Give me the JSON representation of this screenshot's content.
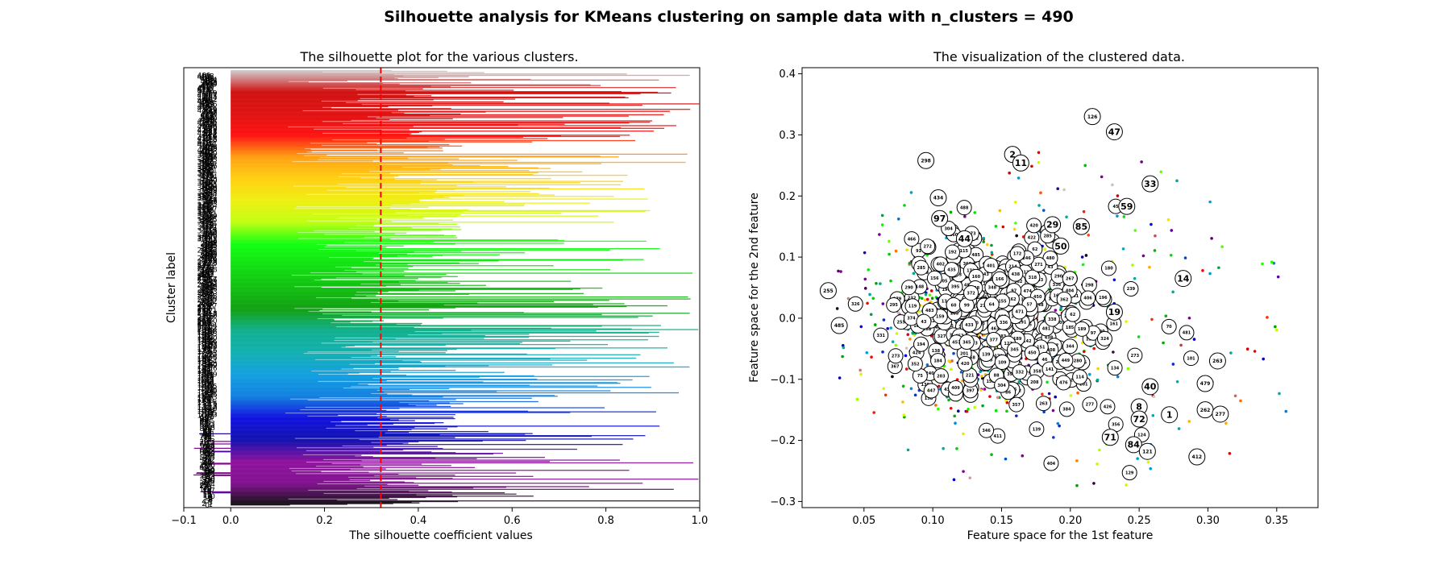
{
  "figure": {
    "suptitle": "Silhouette analysis for KMeans clustering on sample data with n_clusters = 490"
  },
  "chart_data": [
    {
      "type": "bar",
      "orientation": "horizontal",
      "title": "The silhouette plot for the various clusters.",
      "xlabel": "The silhouette coefficient values",
      "ylabel": "Cluster label",
      "xlim": [
        -0.1,
        1.0
      ],
      "xticks": [
        "−0.1",
        "0.0",
        "0.2",
        "0.4",
        "0.6",
        "0.8",
        "1.0"
      ],
      "xtick_values": [
        -0.1,
        0.0,
        0.2,
        0.4,
        0.6,
        0.8,
        1.0
      ],
      "n_clusters": 490,
      "average_silhouette_score": 0.32,
      "average_line_color": "#ff0000",
      "colormap": "nipy_spectral",
      "grid": false
    },
    {
      "type": "scatter",
      "title": "The visualization of the clustered data.",
      "xlabel": "Feature space for the 1st feature",
      "ylabel": "Feature space for the 2nd feature",
      "xlim": [
        0.005,
        0.38
      ],
      "ylim": [
        -0.31,
        0.41
      ],
      "xticks": [
        "0.05",
        "0.10",
        "0.15",
        "0.20",
        "0.25",
        "0.30",
        "0.35"
      ],
      "xtick_values": [
        0.05,
        0.1,
        0.15,
        0.2,
        0.25,
        0.3,
        0.35
      ],
      "yticks": [
        "−0.3",
        "−0.2",
        "−0.1",
        "0.0",
        "0.1",
        "0.2",
        "0.3",
        "0.4"
      ],
      "ytick_values": [
        -0.3,
        -0.2,
        -0.1,
        0.0,
        0.1,
        0.2,
        0.3,
        0.4
      ],
      "colormap": "nipy_spectral",
      "grid": false,
      "centers": [
        {
          "label": "1",
          "x": 0.272,
          "y": -0.158
        },
        {
          "label": "2",
          "x": 0.158,
          "y": 0.268
        },
        {
          "label": "8",
          "x": 0.25,
          "y": -0.145
        },
        {
          "label": "11",
          "x": 0.164,
          "y": 0.254
        },
        {
          "label": "14",
          "x": 0.282,
          "y": 0.065
        },
        {
          "label": "19",
          "x": 0.232,
          "y": 0.01
        },
        {
          "label": "29",
          "x": 0.187,
          "y": 0.153
        },
        {
          "label": "33",
          "x": 0.258,
          "y": 0.22
        },
        {
          "label": "40",
          "x": 0.258,
          "y": -0.112
        },
        {
          "label": "44",
          "x": 0.123,
          "y": 0.13
        },
        {
          "label": "47",
          "x": 0.232,
          "y": 0.305
        },
        {
          "label": "50",
          "x": 0.193,
          "y": 0.118
        },
        {
          "label": "59",
          "x": 0.241,
          "y": 0.183
        },
        {
          "label": "71",
          "x": 0.229,
          "y": -0.195
        },
        {
          "label": "72",
          "x": 0.25,
          "y": -0.165
        },
        {
          "label": "84",
          "x": 0.246,
          "y": -0.207
        },
        {
          "label": "85",
          "x": 0.208,
          "y": 0.15
        },
        {
          "label": "97",
          "x": 0.105,
          "y": 0.163
        },
        {
          "label": "121",
          "x": 0.256,
          "y": -0.218
        },
        {
          "label": "126",
          "x": 0.216,
          "y": 0.33
        },
        {
          "label": "255",
          "x": 0.024,
          "y": 0.045
        },
        {
          "label": "262",
          "x": 0.298,
          "y": -0.15
        },
        {
          "label": "263",
          "x": 0.307,
          "y": -0.07
        },
        {
          "label": "277",
          "x": 0.309,
          "y": -0.157
        },
        {
          "label": "298",
          "x": 0.095,
          "y": 0.258
        },
        {
          "label": "412",
          "x": 0.292,
          "y": -0.227
        },
        {
          "label": "434",
          "x": 0.104,
          "y": 0.197
        },
        {
          "label": "479",
          "x": 0.298,
          "y": -0.107
        },
        {
          "label": "485",
          "x": 0.032,
          "y": -0.012
        }
      ]
    }
  ]
}
